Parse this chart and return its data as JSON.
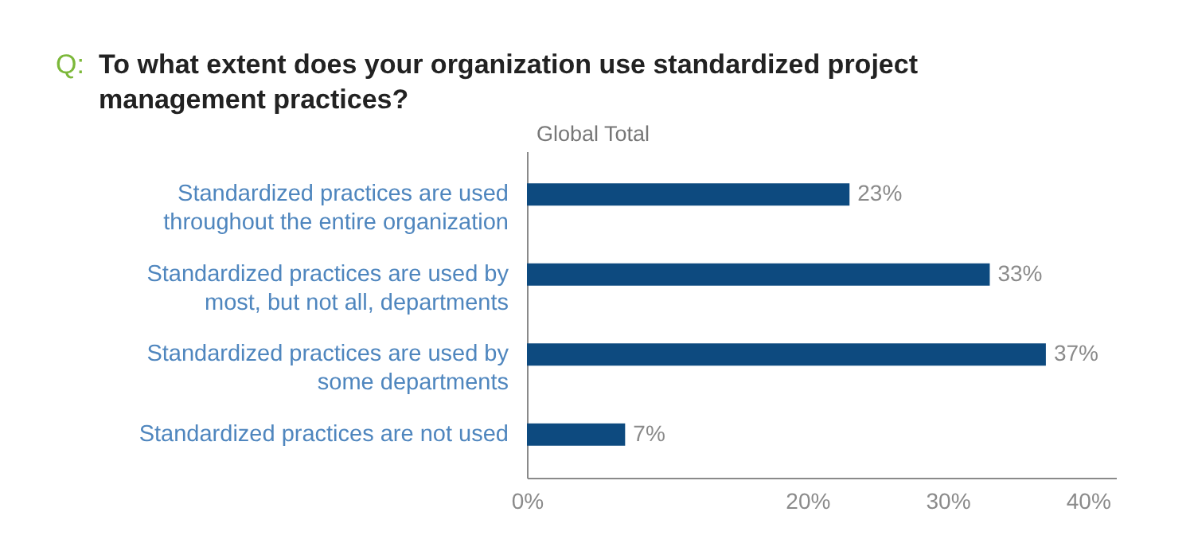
{
  "chart_data": {
    "type": "bar",
    "orientation": "horizontal",
    "title": "Q: To what extent does your organization use standardized project management practices?",
    "subtitle": "Global Total",
    "categories": [
      "Standardized practices are used throughout the entire organization",
      "Standardized practices are used by most, but not all, departments",
      "Standardized practices are used by some departments",
      "Standardized practices are not used"
    ],
    "values": [
      23,
      33,
      37,
      7
    ],
    "value_labels": [
      "23%",
      "33%",
      "37%",
      "7%"
    ],
    "color": "#0d4a7f",
    "xlim": [
      0,
      42
    ],
    "xticks": [
      {
        "value": 0,
        "label": "0%"
      },
      {
        "value": 20,
        "label": "20%"
      },
      {
        "value": 30,
        "label": "30%"
      },
      {
        "value": 40,
        "label": "40%"
      }
    ],
    "grid": false
  }
}
